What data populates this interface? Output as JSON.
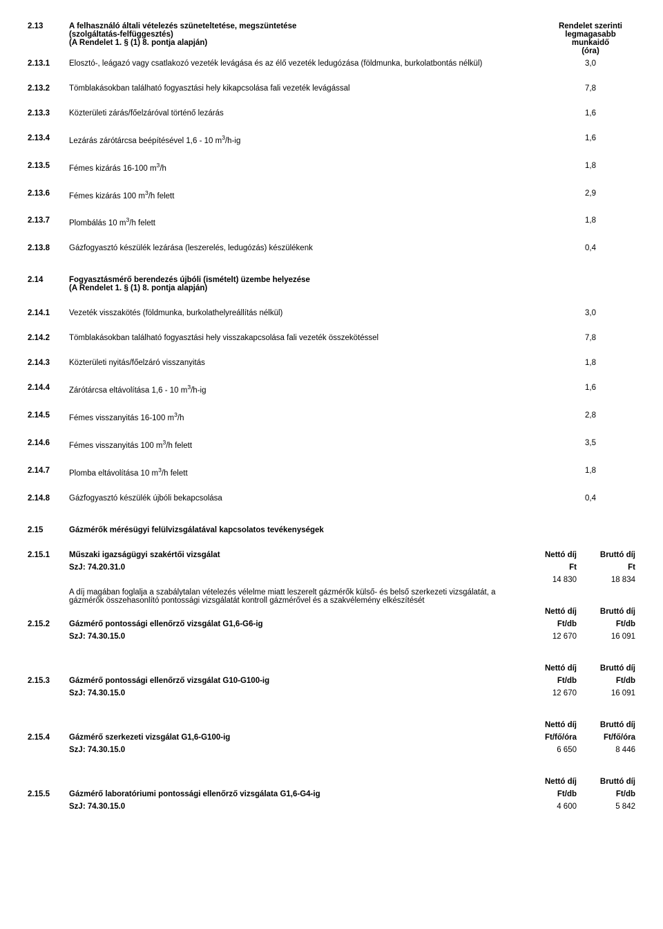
{
  "s213": {
    "num": "2.13",
    "title_l1": "A felhasználó általi vételezés szüneteltetése, megszüntetése",
    "title_l2": "(szolgáltatás-felfüggesztés)",
    "title_l3": "(A Rendelet 1. § (1) 8. pontja alapján)",
    "hdr_l1": "Rendelet szerinti",
    "hdr_l2": "legmagasabb",
    "hdr_l3": "munkaidő",
    "hdr_l4": "(óra)",
    "items": [
      {
        "num": "2.13.1",
        "desc": "Elosztó-, leágazó vagy csatlakozó vezeték levágása és az élő vezeték ledugózása (földmunka, burkolatbontás nélkül)",
        "val": "3,0"
      },
      {
        "num": "2.13.2",
        "desc": "Tömblakásokban található fogyasztási hely kikapcsolása fali vezeték levágással",
        "val": "7,8"
      },
      {
        "num": "2.13.3",
        "desc": "Közterületi zárás/főelzáróval történő lezárás",
        "val": "1,6"
      },
      {
        "num": "2.13.4",
        "desc": "Lezárás zárótárcsa beépítésével 1,6 - 10 m³/h-ig",
        "val": "1,6",
        "sup": true
      },
      {
        "num": "2.13.5",
        "desc": "Fémes kizárás 16-100 m³/h",
        "val": "1,8",
        "sup": true
      },
      {
        "num": "2.13.6",
        "desc": "Fémes kizárás 100 m³/h felett",
        "val": "2,9",
        "sup": true
      },
      {
        "num": "2.13.7",
        "desc": "Plombálás 10 m³/h felett",
        "val": "1,8",
        "sup": true
      },
      {
        "num": "2.13.8",
        "desc": "Gázfogyasztó készülék lezárása (leszerelés, ledugózás) készülékenk",
        "val": "0,4"
      }
    ]
  },
  "s214": {
    "num": "2.14",
    "title_l1": "Fogyasztásmérő berendezés újbóli (ismételt) üzembe helyezése",
    "title_l2": "(A Rendelet 1. § (1) 8. pontja alapján)",
    "items": [
      {
        "num": "2.14.1",
        "desc": "Vezeték visszakötés (földmunka, burkolathelyreállítás nélkül)",
        "val": "3,0"
      },
      {
        "num": "2.14.2",
        "desc": "Tömblakásokban található fogyasztási hely visszakapcsolása fali vezeték összekötéssel",
        "val": "7,8"
      },
      {
        "num": "2.14.3",
        "desc": "Közterületi nyitás/főelzáró visszanyitás",
        "val": "1,8"
      },
      {
        "num": "2.14.4",
        "desc": "Zárótárcsa eltávolítása 1,6 - 10 m³/h-ig",
        "val": "1,6",
        "sup": true
      },
      {
        "num": "2.14.5",
        "desc": "Fémes visszanyitás 16-100 m³/h",
        "val": "2,8",
        "sup": true
      },
      {
        "num": "2.14.6",
        "desc": "Fémes visszanyitás 100 m³/h felett",
        "val": "3,5",
        "sup": true
      },
      {
        "num": "2.14.7",
        "desc": "Plomba eltávolítása 10 m³/h felett",
        "val": "1,8",
        "sup": true
      },
      {
        "num": "2.14.8",
        "desc": "Gázfogyasztó készülék újbóli bekapcsolása",
        "val": "0,4"
      }
    ]
  },
  "s215": {
    "num": "2.15",
    "title": "Gázmérők mérésügyi felülvizsgálatával kapcsolatos tevékenységek",
    "hdr_net": "Nettó díj",
    "hdr_gross": "Bruttó díj",
    "e1": {
      "num": "2.15.1",
      "title": "Műszaki igazságügyi szakértői vizsgálat",
      "szj": "SzJ: 74.20.31.0",
      "unit": "Ft",
      "net": "14 830",
      "gross": "18 834",
      "long": "A díj magában foglalja a szabálytalan vételezés vélelme miatt leszerelt gázmérők külső- és belső szerkezeti vizsgálatát, a gázmérők összehasonlító pontossági vizsgálatát kontroll gázmérővel és a szakvélemény elkészítését"
    },
    "e2": {
      "num": "2.15.2",
      "title": "Gázmérő pontossági ellenőrző vizsgálat G1,6-G6-ig",
      "szj": "SzJ: 74.30.15.0",
      "unit": "Ft/db",
      "net": "12 670",
      "gross": "16 091"
    },
    "e3": {
      "num": "2.15.3",
      "title": "Gázmérő pontossági ellenőrző vizsgálat G10-G100-ig",
      "szj": "SzJ: 74.30.15.0",
      "unit": "Ft/db",
      "net": "12 670",
      "gross": "16 091"
    },
    "e4": {
      "num": "2.15.4",
      "title": "Gázmérő szerkezeti vizsgálat G1,6-G100-ig",
      "szj": "SzJ: 74.30.15.0",
      "unit": "Ft/fő/óra",
      "net": "6 650",
      "gross": "8 446"
    },
    "e5": {
      "num": "2.15.5",
      "title": "Gázmérő laboratóriumi pontossági ellenőrző vizsgálata G1,6-G4-ig",
      "szj": "SzJ: 74.30.15.0",
      "unit": "Ft/db",
      "net": "4 600",
      "gross": "5 842"
    }
  }
}
